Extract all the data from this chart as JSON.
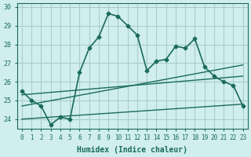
{
  "xlabel": "Humidex (Indice chaleur)",
  "ylabel": "",
  "bg_color": "#d0eeee",
  "grid_color": "#aacccc",
  "line_color": "#1a6b5a",
  "xlim": [
    -0.5,
    23.5
  ],
  "ylim": [
    23.5,
    30.2
  ],
  "xticks": [
    0,
    1,
    2,
    3,
    4,
    5,
    6,
    7,
    8,
    9,
    10,
    11,
    12,
    13,
    14,
    15,
    16,
    17,
    18,
    19,
    20,
    21,
    22,
    23
  ],
  "yticks": [
    24,
    25,
    26,
    27,
    28,
    29,
    30
  ],
  "main_x": [
    0,
    1,
    2,
    3,
    4,
    5,
    6,
    7,
    8,
    9,
    10,
    11,
    12,
    13,
    14,
    15,
    16,
    17,
    18,
    19,
    20,
    21,
    22,
    23
  ],
  "main_y": [
    25.5,
    25.0,
    24.7,
    23.7,
    24.1,
    24.0,
    26.5,
    27.8,
    28.4,
    29.65,
    29.5,
    29.0,
    28.5,
    26.6,
    27.1,
    27.2,
    27.9,
    27.8,
    28.3,
    26.8,
    26.3,
    26.0,
    25.8,
    24.7
  ],
  "trend1_x": [
    0,
    23
  ],
  "trend1_y": [
    24.7,
    26.9
  ],
  "trend2_x": [
    0,
    23
  ],
  "trend2_y": [
    24.0,
    24.8
  ],
  "trend3_x": [
    0,
    23
  ],
  "trend3_y": [
    25.3,
    26.3
  ]
}
